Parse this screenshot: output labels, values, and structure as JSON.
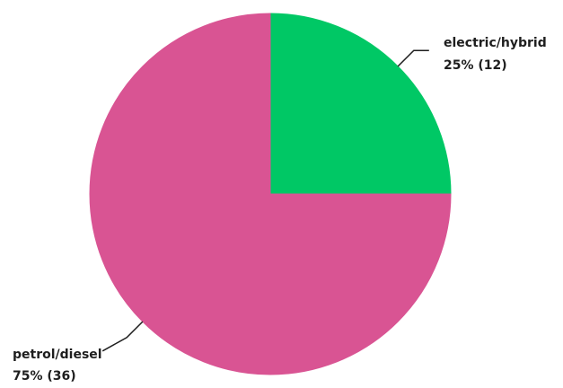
{
  "chart_data": {
    "type": "pie",
    "title": "",
    "categories": [
      "electric/hybrid",
      "petrol/diesel"
    ],
    "values": [
      12,
      36
    ],
    "percentages": [
      "25%",
      "75%"
    ],
    "colors": [
      "#00c865",
      "#d95493"
    ],
    "start_position": "top",
    "direction": "clockwise",
    "labels": [
      {
        "category": "electric/hybrid",
        "value_text": "25% (12)"
      },
      {
        "category": "petrol/diesel",
        "value_text": "75% (36)"
      }
    ]
  }
}
